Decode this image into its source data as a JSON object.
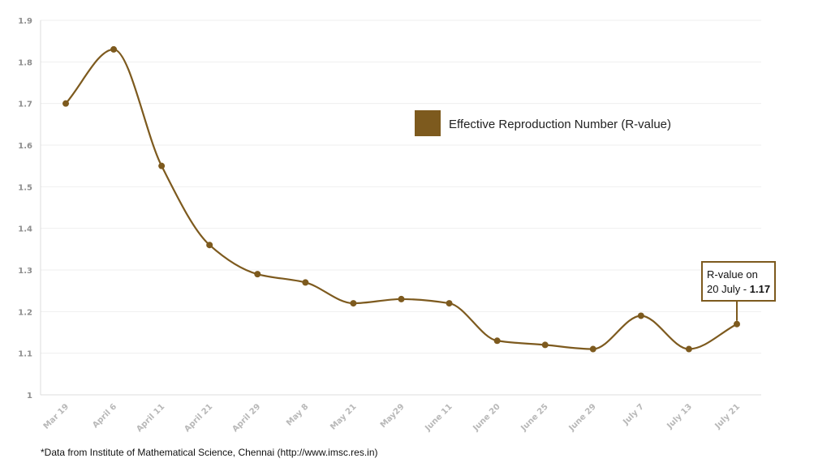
{
  "chart_data": {
    "type": "line",
    "title": "",
    "xlabel": "",
    "ylabel": "",
    "ylim": [
      1,
      1.9
    ],
    "yticks": [
      "1",
      "1.1",
      "1.2",
      "1.3",
      "1.4",
      "1.5",
      "1.6",
      "1.7",
      "1.8",
      "1.9"
    ],
    "categories": [
      "Mar 19",
      "April 6",
      "April 11",
      "April 21",
      "April 29",
      "May 8",
      "May 21",
      "May29",
      "June 11",
      "June 20",
      "June 25",
      "June 29",
      "July 7",
      "July 13",
      "July 21"
    ],
    "series": [
      {
        "name": "Effective Reproduction Number (R-value)",
        "color": "#7d5a1e",
        "values": [
          1.7,
          1.83,
          1.55,
          1.36,
          1.29,
          1.27,
          1.22,
          1.23,
          1.22,
          1.13,
          1.12,
          1.11,
          1.19,
          1.11,
          1.17
        ]
      }
    ],
    "legend": {
      "label": "Effective Reproduction Number (R-value)",
      "position": "top-right"
    },
    "annotation": {
      "line1": "R-value on",
      "line2_prefix": "20 July - ",
      "line2_value": "1.17",
      "target_category": "July 21"
    },
    "grid": true
  },
  "footnote": "*Data from Institute of Mathematical Science, Chennai (http://www.imsc.res.in)"
}
